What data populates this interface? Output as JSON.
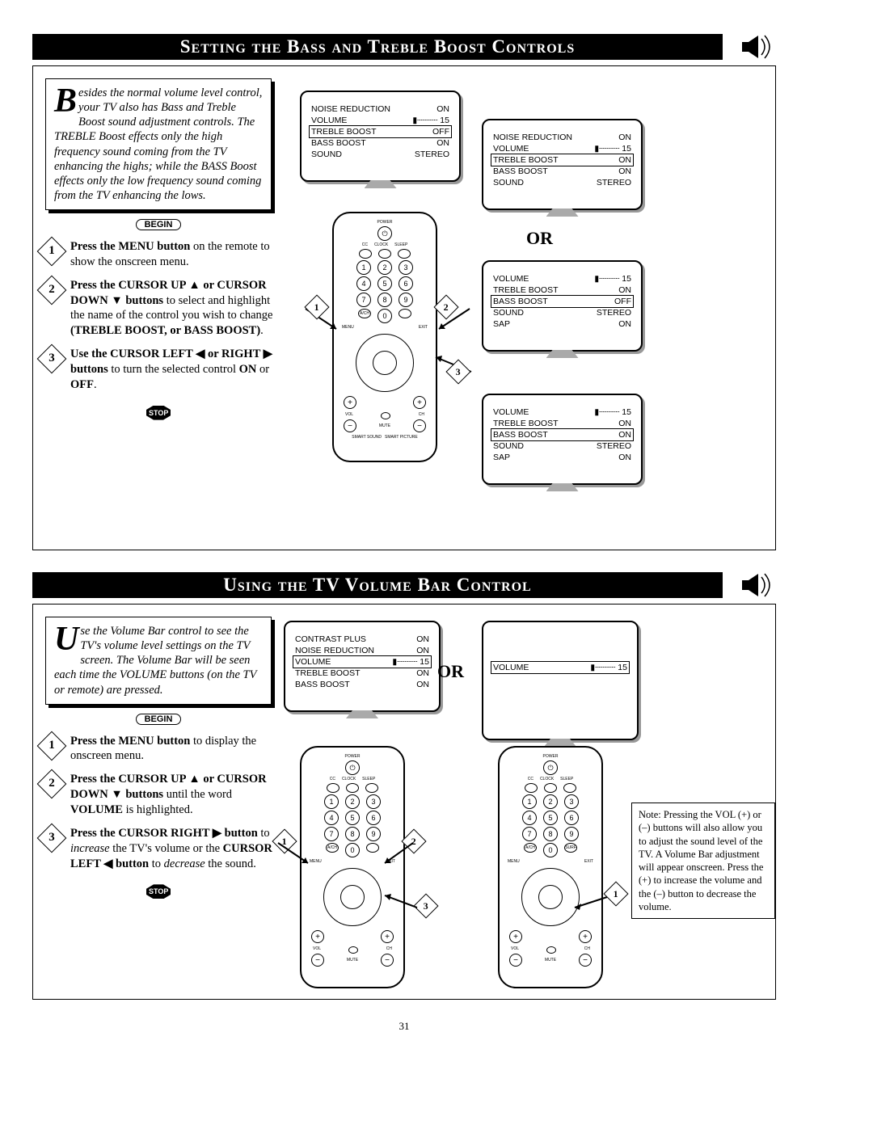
{
  "page_number": "31",
  "section1": {
    "title": "Setting the Bass and Treble Boost Controls",
    "intro_dropcap": "B",
    "intro_text": "esides the normal volume level control, your TV also has Bass and Treble Boost sound adjustment controls. The TREBLE Boost effects only the high frequency sound coming from the TV enhancing the highs; while the BASS Boost effects only the low frequency sound coming from the TV enhancing the lows.",
    "begin_label": "BEGIN",
    "stop_label": "STOP",
    "or_label": "OR",
    "steps": {
      "s1_bold": "Press the MENU button",
      "s1_rest": " on the remote to show the onscreen menu.",
      "s2_bold": "Press the CURSOR UP ▲ or CURSOR DOWN ▼ buttons",
      "s2_rest": " to select and highlight the name of the control you wish to change ",
      "s2_bold2": "(TREBLE BOOST, or BASS BOOST)",
      "s3_bold": "Use the CURSOR LEFT ◀ or RIGHT ▶ buttons",
      "s3_rest": " to turn the selected control ",
      "s3_bold2": "ON",
      "s3_or": " or ",
      "s3_bold3": "OFF"
    },
    "tv1_rows": [
      [
        "NOISE REDUCTION",
        "ON",
        false
      ],
      [
        "VOLUME",
        "▮┈┈┈┈ 15",
        false
      ],
      [
        "TREBLE BOOST",
        "OFF",
        true
      ],
      [
        "BASS BOOST",
        "ON",
        false
      ],
      [
        "SOUND",
        "STEREO",
        false
      ]
    ],
    "tv2_rows": [
      [
        "NOISE REDUCTION",
        "ON",
        false
      ],
      [
        "VOLUME",
        "▮┈┈┈┈ 15",
        false
      ],
      [
        "TREBLE BOOST",
        "ON",
        true
      ],
      [
        "BASS BOOST",
        "ON",
        false
      ],
      [
        "SOUND",
        "STEREO",
        false
      ]
    ],
    "tv3_rows": [
      [
        "VOLUME",
        "▮┈┈┈┈ 15",
        false
      ],
      [
        "TREBLE BOOST",
        "ON",
        false
      ],
      [
        "BASS BOOST",
        "OFF",
        true
      ],
      [
        "SOUND",
        "STEREO",
        false
      ],
      [
        "SAP",
        "ON",
        false
      ]
    ],
    "tv4_rows": [
      [
        "VOLUME",
        "▮┈┈┈┈ 15",
        false
      ],
      [
        "TREBLE BOOST",
        "ON",
        false
      ],
      [
        "BASS BOOST",
        "ON",
        true
      ],
      [
        "SOUND",
        "STEREO",
        false
      ],
      [
        "SAP",
        "ON",
        false
      ]
    ]
  },
  "section2": {
    "title": "Using the TV Volume Bar Control",
    "intro_dropcap": "U",
    "intro_text": "se the Volume Bar control to see the TV's volume level settings on the TV screen. The Volume Bar will be seen each time the VOLUME buttons (on the TV or remote) are pressed.",
    "begin_label": "BEGIN",
    "stop_label": "STOP",
    "or_label": "OR",
    "steps": {
      "s1_bold": "Press the MENU button",
      "s1_rest": " to display the onscreen menu.",
      "s2_bold": "Press the CURSOR UP ▲ or CURSOR DOWN ▼ buttons",
      "s2_rest": " until the word ",
      "s2_bold2": "VOLUME",
      "s2_rest2": " is highlighted.",
      "s3_bold": "Press the CURSOR RIGHT ▶ button",
      "s3_rest": " to ",
      "s3_ital": "increase",
      "s3_rest2": " the TV's volume or the ",
      "s3_bold2": "CURSOR LEFT ◀ button",
      "s3_rest3": " to ",
      "s3_ital2": "decrease",
      "s3_rest4": " the sound."
    },
    "tv1_rows": [
      [
        "CONTRAST PLUS",
        "ON",
        false
      ],
      [
        "NOISE REDUCTION",
        "ON",
        false
      ],
      [
        "VOLUME",
        "▮┈┈┈┈ 15",
        true
      ],
      [
        "TREBLE BOOST",
        "ON",
        false
      ],
      [
        "BASS BOOST",
        "ON",
        false
      ]
    ],
    "tv2_rows": [
      [
        "VOLUME",
        "▮┈┈┈┈ 15",
        true
      ]
    ],
    "note_text": "Note: Pressing the VOL (+) or (–) buttons will also allow you to adjust the sound level of the TV. A Volume Bar adjustment will appear onscreen. Press the (+) to increase the volume and the (–) button to decrease the volume."
  },
  "remote_labels": {
    "power": "POWER",
    "cc": "CC",
    "clock": "CLOCK",
    "sleep": "SLEEP",
    "ach": "A/CH",
    "surf": "SURF",
    "menu": "MENU",
    "exit": "EXIT",
    "vol": "VOL",
    "ch": "CH",
    "mute": "MUTE",
    "smart_sound": "SMART SOUND",
    "smart_picture": "SMART PICTURE"
  }
}
